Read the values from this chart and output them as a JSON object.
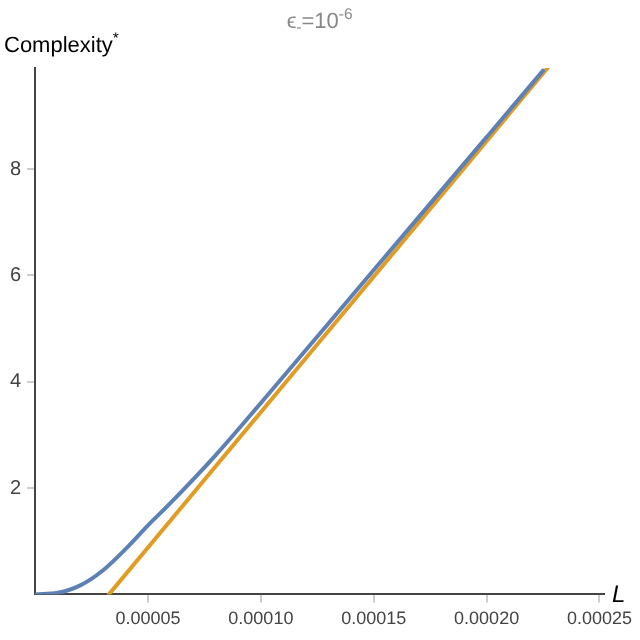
{
  "chart_data": {
    "type": "line",
    "title": "ϵ$_{-}$=10$^{-6}$",
    "xlabel": "L",
    "ylabel": "Complexity$^{*}$",
    "xlim": [
      0,
      0.000252
    ],
    "ylim": [
      0,
      9.9
    ],
    "xticks": [
      {
        "value": 5e-05,
        "label": "0.00005"
      },
      {
        "value": 0.0001,
        "label": "0.00010"
      },
      {
        "value": 0.00015,
        "label": "0.00015"
      },
      {
        "value": 0.0002,
        "label": "0.00020"
      },
      {
        "value": 0.00025,
        "label": "0.00025"
      }
    ],
    "yticks": [
      2,
      4,
      6,
      8
    ],
    "grid": false,
    "legend": false,
    "marker": "none",
    "line_style": "solid",
    "series": [
      {
        "color": "#5e81b5",
        "x": [
          0,
          1e-05,
          2e-05,
          3e-05,
          4e-05,
          5e-05,
          6e-05,
          8e-05,
          0.0001,
          0.00015,
          0.0002,
          0.000225
        ],
        "values": [
          0,
          0.03,
          0.17,
          0.45,
          0.85,
          1.3,
          1.72,
          2.62,
          3.6,
          6.1,
          8.6,
          9.85
        ]
      },
      {
        "color": "#e19c24",
        "x": [
          3.27e-05,
          0.000227
        ],
        "values": [
          0,
          9.9
        ]
      }
    ]
  }
}
